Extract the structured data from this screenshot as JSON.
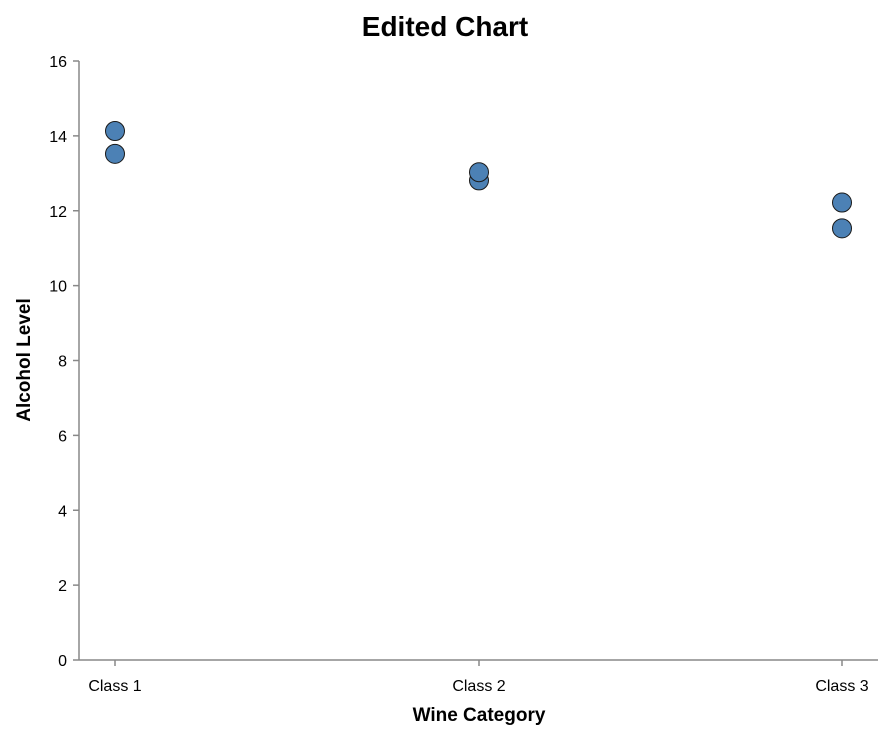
{
  "chart_data": {
    "type": "scatter",
    "title": "Edited Chart",
    "xlabel": "Wine Category",
    "ylabel": "Alcohol Level",
    "categories": [
      "Class 1",
      "Class 2",
      "Class 3"
    ],
    "ylim": [
      0,
      16
    ],
    "yticks": [
      0,
      2,
      4,
      6,
      8,
      10,
      12,
      14,
      16
    ],
    "grid": false,
    "legend": "none",
    "points": [
      {
        "x": "Class 1",
        "y": 14.13
      },
      {
        "x": "Class 1",
        "y": 13.52
      },
      {
        "x": "Class 2",
        "y": 12.81
      },
      {
        "x": "Class 2",
        "y": 13.03
      },
      {
        "x": "Class 3",
        "y": 12.22
      },
      {
        "x": "Class 3",
        "y": 11.53
      }
    ],
    "colors": {
      "point_fill": "#4c81b5",
      "point_stroke": "#1a1a1a",
      "axis": "#888888"
    }
  }
}
